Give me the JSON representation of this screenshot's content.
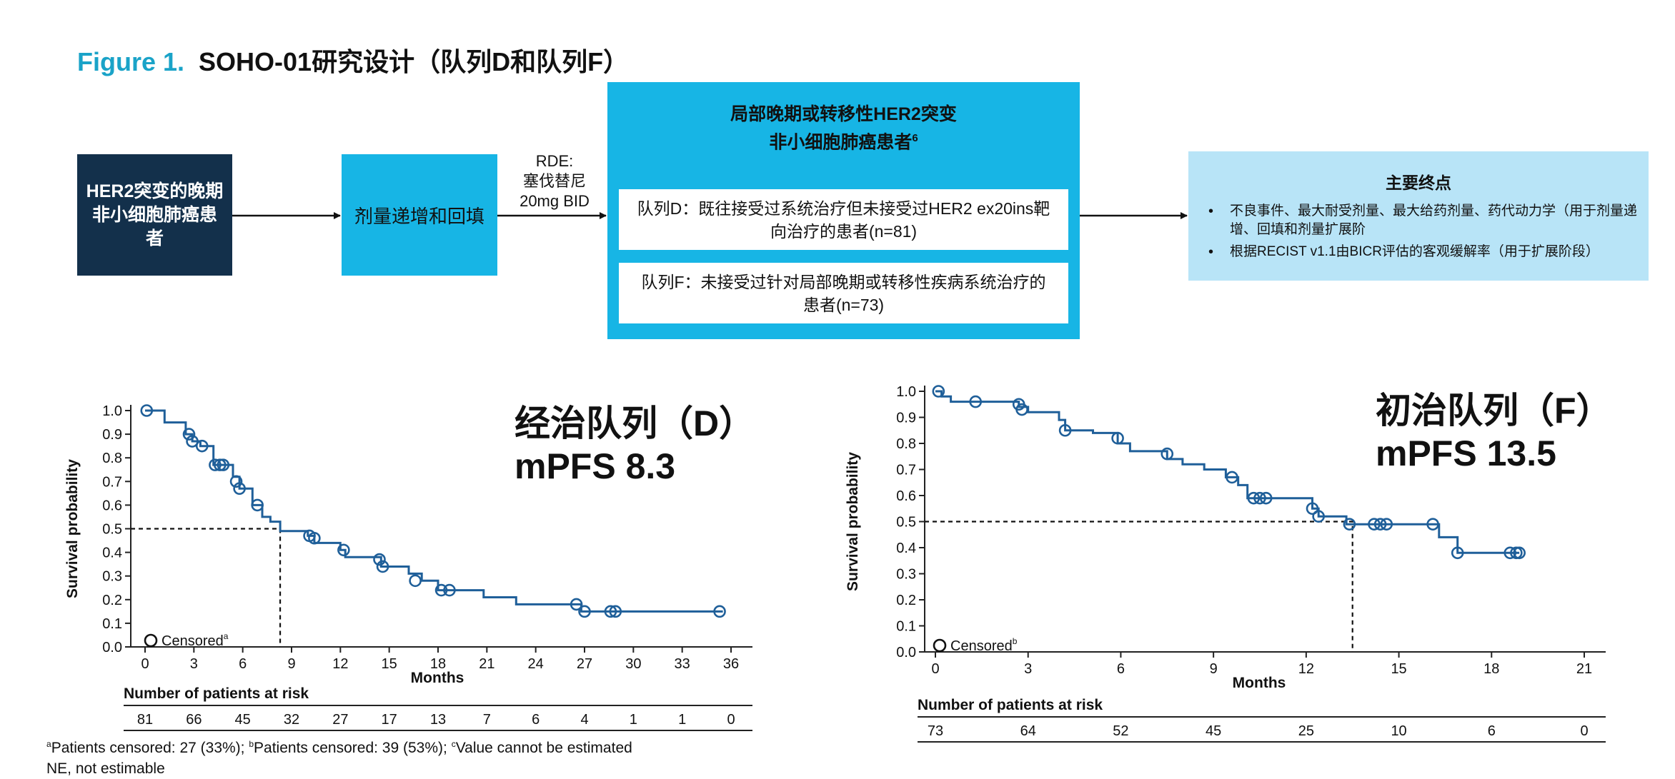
{
  "figure": {
    "number": "Figure 1.",
    "title": "SOHO-01研究设计（队列D和队列F）"
  },
  "design": {
    "population_box": "HER2突变的晚期非小细胞肺癌患者",
    "escalation_box": "剂量递增和回填",
    "rde_label": "RDE:",
    "rde_drug": "塞伐替尼",
    "rde_dose": "20mg BID",
    "cohorts_title": "局部晚期或转移性HER2突变",
    "cohorts_title_line2": "非小细胞肺癌患者",
    "cohorts_title_sup": "6",
    "cohort_d": "队列D：既往接受过系统治疗但未接受过HER2 ex20ins靶向治疗的患者(n=81)",
    "cohort_f": "队列F：未接受过针对局部晚期或转移性疾病系统治疗的患者(n=73)",
    "endpoints_title": "主要终点",
    "endpoints": [
      "不良事件、最大耐受剂量、最大给药剂量、药代动力学（用于剂量递增、回填和剂量扩展阶",
      "根据RECIST v1.1由BICR评估的客观缓解率（用于扩展阶段）"
    ]
  },
  "charts": {
    "left_headline_1": "经治队列（D）",
    "left_headline_2": "mPFS 8.3",
    "right_headline_1": "初治队列（F）",
    "right_headline_2": "mPFS 13.5"
  },
  "chart_data": [
    {
      "type": "line",
      "panel": "left",
      "ylabel": "Survival probability",
      "xlabel": "Months",
      "xlim": [
        0,
        36
      ],
      "ylim": [
        0,
        1.0
      ],
      "xticks": [
        0,
        3,
        6,
        9,
        12,
        15,
        18,
        21,
        24,
        27,
        30,
        33,
        36
      ],
      "yticks": [
        0.0,
        0.1,
        0.2,
        0.3,
        0.4,
        0.5,
        0.6,
        0.7,
        0.8,
        0.9,
        1.0
      ],
      "legend": "Censored",
      "legend_sup": "a",
      "median_x": 8.3,
      "median_y": 0.5,
      "step_curve": [
        [
          0,
          1.0
        ],
        [
          1.2,
          1.0
        ],
        [
          1.2,
          0.95
        ],
        [
          2.5,
          0.95
        ],
        [
          2.5,
          0.9
        ],
        [
          2.9,
          0.9
        ],
        [
          2.9,
          0.87
        ],
        [
          3.4,
          0.87
        ],
        [
          3.4,
          0.85
        ],
        [
          4.2,
          0.85
        ],
        [
          4.2,
          0.77
        ],
        [
          5.4,
          0.77
        ],
        [
          5.4,
          0.72
        ],
        [
          5.8,
          0.72
        ],
        [
          5.8,
          0.67
        ],
        [
          6.6,
          0.67
        ],
        [
          6.6,
          0.6
        ],
        [
          7.2,
          0.6
        ],
        [
          7.2,
          0.55
        ],
        [
          7.7,
          0.55
        ],
        [
          7.7,
          0.53
        ],
        [
          8.3,
          0.53
        ],
        [
          8.3,
          0.49
        ],
        [
          10.0,
          0.49
        ],
        [
          10.0,
          0.47
        ],
        [
          10.4,
          0.47
        ],
        [
          10.4,
          0.44
        ],
        [
          12.0,
          0.44
        ],
        [
          12.0,
          0.41
        ],
        [
          12.3,
          0.41
        ],
        [
          12.3,
          0.38
        ],
        [
          14.5,
          0.38
        ],
        [
          14.5,
          0.34
        ],
        [
          16.2,
          0.34
        ],
        [
          16.2,
          0.31
        ],
        [
          17.0,
          0.31
        ],
        [
          17.0,
          0.28
        ],
        [
          18.0,
          0.28
        ],
        [
          18.0,
          0.24
        ],
        [
          20.8,
          0.24
        ],
        [
          20.8,
          0.21
        ],
        [
          22.8,
          0.21
        ],
        [
          22.8,
          0.18
        ],
        [
          26.8,
          0.18
        ],
        [
          26.8,
          0.15
        ],
        [
          35.5,
          0.15
        ]
      ],
      "censored": [
        [
          0.1,
          1.0
        ],
        [
          2.7,
          0.9
        ],
        [
          2.9,
          0.87
        ],
        [
          3.5,
          0.85
        ],
        [
          4.3,
          0.77
        ],
        [
          4.6,
          0.77
        ],
        [
          4.8,
          0.77
        ],
        [
          5.6,
          0.7
        ],
        [
          5.8,
          0.67
        ],
        [
          6.9,
          0.6
        ],
        [
          10.1,
          0.47
        ],
        [
          10.4,
          0.46
        ],
        [
          12.2,
          0.41
        ],
        [
          14.4,
          0.37
        ],
        [
          14.6,
          0.34
        ],
        [
          16.6,
          0.28
        ],
        [
          18.2,
          0.24
        ],
        [
          18.7,
          0.24
        ],
        [
          26.5,
          0.18
        ],
        [
          27.0,
          0.15
        ],
        [
          28.6,
          0.15
        ],
        [
          28.9,
          0.15
        ],
        [
          35.3,
          0.15
        ]
      ],
      "risk_table_title": "Number of patients at risk",
      "risk_times": [
        0,
        3,
        6,
        9,
        12,
        15,
        18,
        21,
        24,
        27,
        30,
        33,
        36
      ],
      "at_risk": [
        "81",
        "66",
        "45",
        "32",
        "27",
        "17",
        "13",
        "7",
        "6",
        "4",
        "1",
        "1",
        "0"
      ]
    },
    {
      "type": "line",
      "panel": "right",
      "ylabel": "Survival probability",
      "xlabel": "Months",
      "xlim": [
        0,
        21
      ],
      "ylim": [
        0,
        1.0
      ],
      "xticks": [
        0,
        3,
        6,
        9,
        12,
        15,
        18,
        21
      ],
      "yticks": [
        0.0,
        0.1,
        0.2,
        0.3,
        0.4,
        0.5,
        0.6,
        0.7,
        0.8,
        0.9,
        1.0
      ],
      "legend": "Censored",
      "legend_sup": "b",
      "median_x": 13.5,
      "median_y": 0.5,
      "step_curve": [
        [
          0,
          1.0
        ],
        [
          0.2,
          1.0
        ],
        [
          0.2,
          0.98
        ],
        [
          0.5,
          0.98
        ],
        [
          0.5,
          0.96
        ],
        [
          2.7,
          0.96
        ],
        [
          2.7,
          0.94
        ],
        [
          3.0,
          0.94
        ],
        [
          3.0,
          0.92
        ],
        [
          4.0,
          0.92
        ],
        [
          4.0,
          0.89
        ],
        [
          4.2,
          0.89
        ],
        [
          4.2,
          0.85
        ],
        [
          5.1,
          0.85
        ],
        [
          5.1,
          0.84
        ],
        [
          5.9,
          0.84
        ],
        [
          5.9,
          0.8
        ],
        [
          6.3,
          0.8
        ],
        [
          6.3,
          0.77
        ],
        [
          7.5,
          0.77
        ],
        [
          7.5,
          0.74
        ],
        [
          8.0,
          0.74
        ],
        [
          8.0,
          0.72
        ],
        [
          8.7,
          0.72
        ],
        [
          8.7,
          0.7
        ],
        [
          9.4,
          0.7
        ],
        [
          9.4,
          0.67
        ],
        [
          9.8,
          0.67
        ],
        [
          9.8,
          0.64
        ],
        [
          10.1,
          0.64
        ],
        [
          10.1,
          0.59
        ],
        [
          12.2,
          0.59
        ],
        [
          12.2,
          0.55
        ],
        [
          12.4,
          0.55
        ],
        [
          12.4,
          0.52
        ],
        [
          13.3,
          0.52
        ],
        [
          13.3,
          0.49
        ],
        [
          16.3,
          0.49
        ],
        [
          16.3,
          0.44
        ],
        [
          16.9,
          0.44
        ],
        [
          16.9,
          0.38
        ],
        [
          18.9,
          0.38
        ]
      ],
      "censored": [
        [
          0.1,
          1.0
        ],
        [
          1.3,
          0.96
        ],
        [
          2.7,
          0.95
        ],
        [
          2.8,
          0.93
        ],
        [
          4.2,
          0.85
        ],
        [
          5.9,
          0.82
        ],
        [
          7.5,
          0.76
        ],
        [
          9.6,
          0.67
        ],
        [
          10.3,
          0.59
        ],
        [
          10.5,
          0.59
        ],
        [
          10.7,
          0.59
        ],
        [
          12.2,
          0.55
        ],
        [
          12.4,
          0.52
        ],
        [
          13.4,
          0.49
        ],
        [
          14.2,
          0.49
        ],
        [
          14.4,
          0.49
        ],
        [
          14.6,
          0.49
        ],
        [
          16.1,
          0.49
        ],
        [
          16.9,
          0.38
        ],
        [
          18.6,
          0.38
        ],
        [
          18.8,
          0.38
        ],
        [
          18.9,
          0.38
        ]
      ],
      "risk_table_title": "Number of patients at risk",
      "risk_times": [
        0,
        3,
        6,
        9,
        12,
        15,
        18,
        21
      ],
      "at_risk": [
        "73",
        "64",
        "52",
        "45",
        "25",
        "10",
        "6",
        "0"
      ]
    }
  ],
  "footnote": {
    "line1_a": "a",
    "line1_a_text": "Patients censored: 27 (33%); ",
    "line1_b": "b",
    "line1_b_text": "Patients censored: 39 (53%); ",
    "line1_c": "c",
    "line1_c_text": "Value cannot be estimated",
    "line2": "NE, not estimable"
  }
}
